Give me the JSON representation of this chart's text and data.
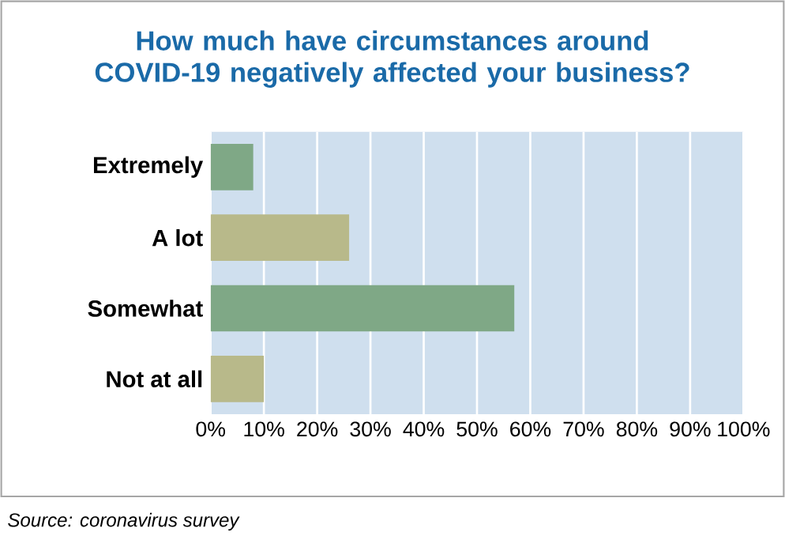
{
  "chart_data": {
    "type": "bar",
    "orientation": "horizontal",
    "title": "How much have circumstances around COVID-19 negatively affected your business?",
    "categories": [
      "Extremely",
      "A lot",
      "Somewhat",
      "Not at all"
    ],
    "values": [
      8,
      26,
      57,
      10
    ],
    "colors": [
      "#7fa886",
      "#b8b98a",
      "#7fa886",
      "#b8b98a"
    ],
    "xlim": [
      0,
      100
    ],
    "xticks": [
      {
        "value": 0,
        "label": "0%"
      },
      {
        "value": 10,
        "label": "10%"
      },
      {
        "value": 20,
        "label": "20%"
      },
      {
        "value": 30,
        "label": "30%"
      },
      {
        "value": 40,
        "label": "40%"
      },
      {
        "value": 50,
        "label": "50%"
      },
      {
        "value": 60,
        "label": "60%"
      },
      {
        "value": 70,
        "label": "70%"
      },
      {
        "value": 80,
        "label": "80%"
      },
      {
        "value": 90,
        "label": "90%"
      },
      {
        "value": 100,
        "label": "100%"
      }
    ],
    "grid": "x",
    "annotations": [
      "Source: coronavirus survey"
    ]
  }
}
